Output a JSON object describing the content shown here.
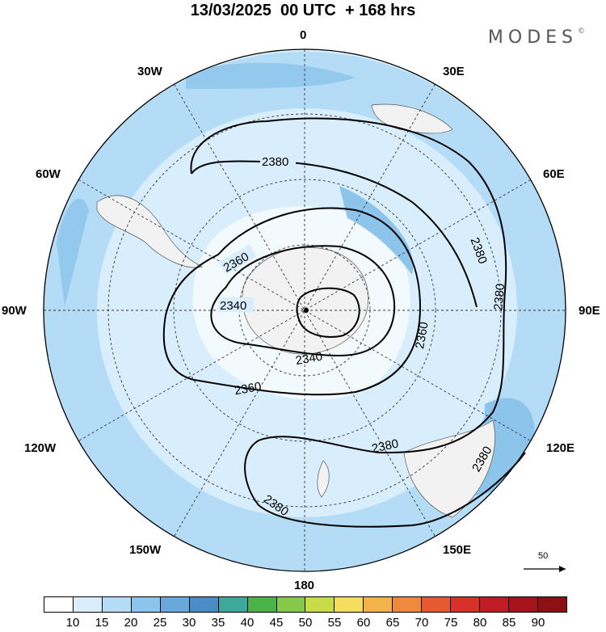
{
  "title": "13/03/2025  00 UTC  + 168 hrs",
  "brand": "MODES",
  "brand_mark": "©",
  "longitude_labels": {
    "lon_0": "0",
    "lon_30e": "30E",
    "lon_60e": "60E",
    "lon_90e": "90E",
    "lon_120e": "120E",
    "lon_150e": "150E",
    "lon_180": "180",
    "lon_150w": "150W",
    "lon_120w": "120W",
    "lon_90w": "90W",
    "lon_60w": "60W",
    "lon_30w": "30W"
  },
  "contour_labels": [
    "2380",
    "2360",
    "2380",
    "2380",
    "2340",
    "2360",
    "2340",
    "2360",
    "2380",
    "2380",
    "2380"
  ],
  "reference_vector": "50",
  "colorbar": {
    "colors": [
      "#ffffff",
      "#d8eefc",
      "#b4dcf6",
      "#8cc4ec",
      "#6aa8dc",
      "#4a8cc6",
      "#3fa89c",
      "#4ab44a",
      "#86c84a",
      "#c8dc4a",
      "#f4dc5c",
      "#f4b24a",
      "#ee8a3c",
      "#e65a30",
      "#d8302a",
      "#c01c24",
      "#a8141e",
      "#8c1014"
    ],
    "labels": [
      "10",
      "15",
      "20",
      "25",
      "30",
      "35",
      "40",
      "45",
      "50",
      "55",
      "60",
      "65",
      "70",
      "75",
      "80",
      "85",
      "90"
    ]
  }
}
